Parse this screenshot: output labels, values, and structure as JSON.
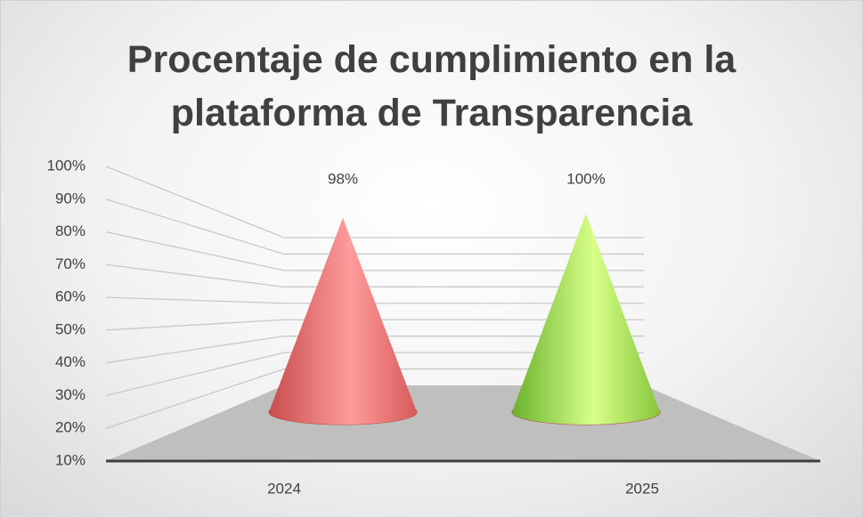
{
  "chart_data": {
    "type": "cone",
    "title": "Procentaje de cumplimiento en la plataforma de Transparencia",
    "categories": [
      "2024",
      "2025"
    ],
    "values": [
      98,
      100
    ],
    "value_labels": [
      "98%",
      "100%"
    ],
    "colors": [
      "#f07f7f",
      "#a8e050"
    ],
    "ylim": [
      10,
      100
    ],
    "yticks": [
      {
        "value": 10,
        "label": "10%"
      },
      {
        "value": 20,
        "label": "20%"
      },
      {
        "value": 30,
        "label": "30%"
      },
      {
        "value": 40,
        "label": "40%"
      },
      {
        "value": 50,
        "label": "50%"
      },
      {
        "value": 60,
        "label": "60%"
      },
      {
        "value": 70,
        "label": "70%"
      },
      {
        "value": 80,
        "label": "80%"
      },
      {
        "value": 90,
        "label": "90%"
      },
      {
        "value": 100,
        "label": "100%"
      }
    ],
    "grid": true
  }
}
